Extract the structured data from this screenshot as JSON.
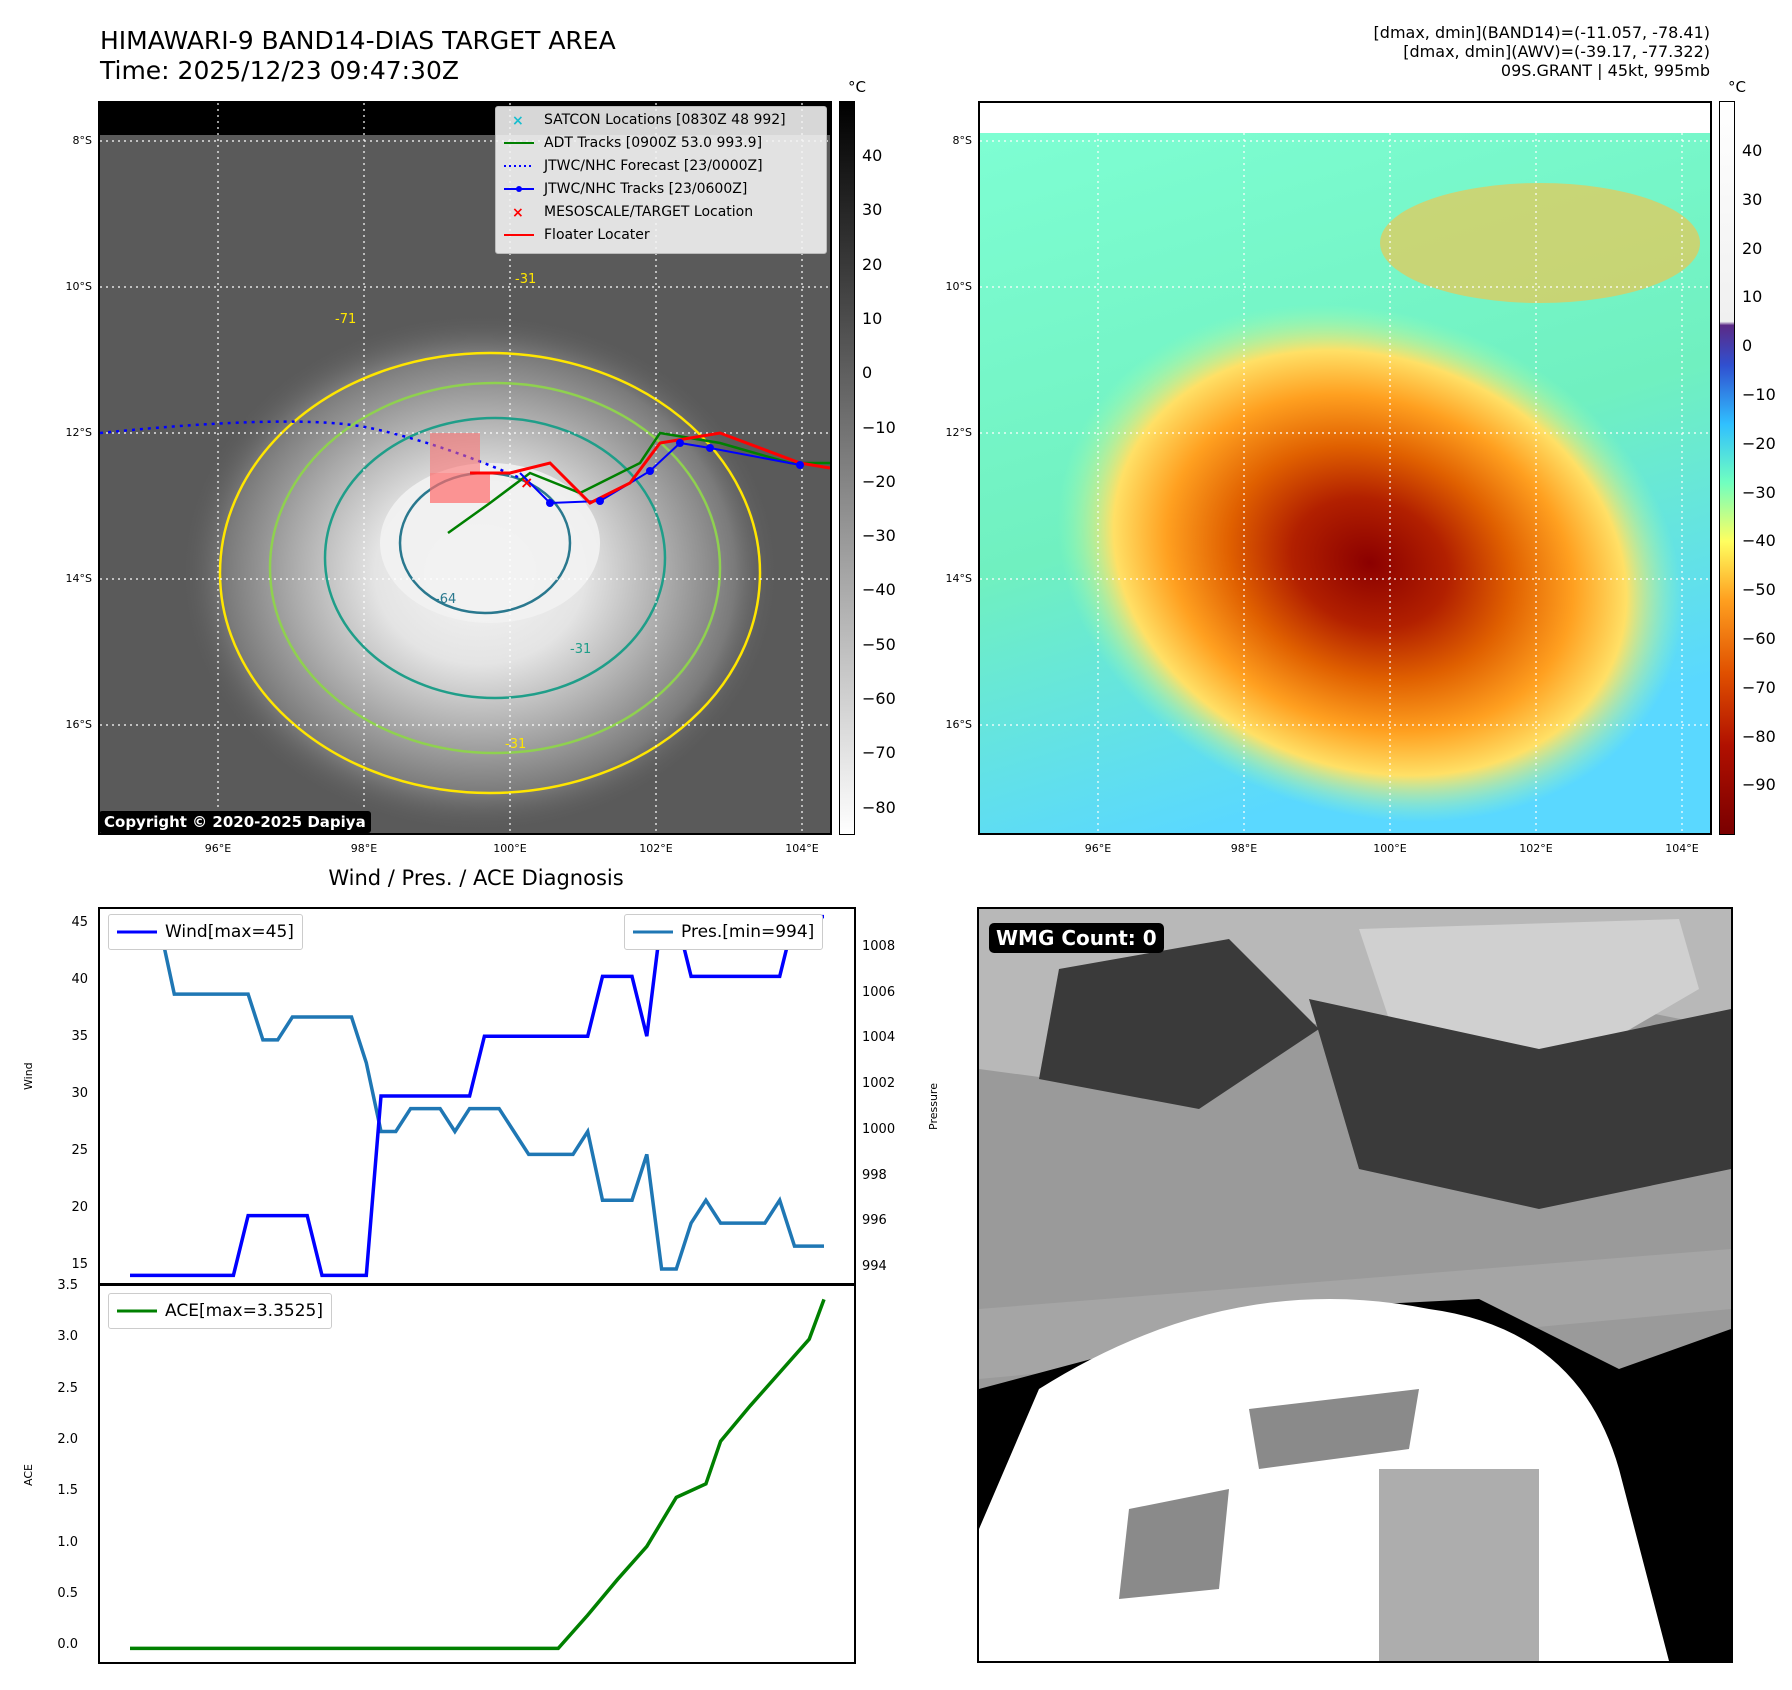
{
  "header": {
    "title_line1": "HIMAWARI-9 BAND14-DIAS TARGET AREA",
    "title_line2": "Time: 2025/12/23 09:47:30Z",
    "info_line1": "[dmax, dmin](BAND14)=(-11.057, -78.41)",
    "info_line2": "[dmax, dmin](AWV)=(-39.17, -77.322)",
    "info_line3": "09S.GRANT | 45kt, 995mb"
  },
  "map": {
    "lat_ticks": [
      "8°S",
      "10°S",
      "12°S",
      "14°S",
      "16°S"
    ],
    "lon_ticks": [
      "96°E",
      "98°E",
      "100°E",
      "102°E",
      "104°E"
    ],
    "contour_labels": [
      "-31",
      "-64",
      "-31",
      "-31",
      "-71"
    ],
    "copyright": "Copyright © 2020-2025 Dapiya",
    "legend": [
      {
        "label": "SATCON Locations [0830Z 48 992]",
        "color": "#17becf"
      },
      {
        "label": "ADT Tracks [0900Z 53.0 993.9]",
        "color": "#008000"
      },
      {
        "label": "JTWC/NHC Forecast [23/0000Z]",
        "color": "#0000ff"
      },
      {
        "label": "JTWC/NHC Tracks [23/0600Z]",
        "color": "#0000ff"
      },
      {
        "label": "MESOSCALE/TARGET Location",
        "color": "#ff0000"
      },
      {
        "label": "Floater Locater",
        "color": "#ff0000"
      }
    ]
  },
  "colorbar_gray": {
    "unit": "°C",
    "ticks": [
      "40",
      "30",
      "20",
      "10",
      "0",
      "−10",
      "−20",
      "−30",
      "−40",
      "−50",
      "−60",
      "−70",
      "−80"
    ]
  },
  "colorbar_color": {
    "unit": "°C",
    "ticks": [
      "40",
      "30",
      "20",
      "10",
      "0",
      "−10",
      "−20",
      "−30",
      "−40",
      "−50",
      "−60",
      "−70",
      "−80",
      "−90"
    ]
  },
  "wind_panel": {
    "title": "Wind / Pres. / ACE Diagnosis",
    "wind_legend": "Wind[max=45]",
    "pres_legend": "Pres.[min=994]",
    "ace_legend": "ACE[max=3.3525]",
    "ylabel_left": "Wind",
    "ylabel_right": "Pressure",
    "ylabel_ace": "ACE",
    "wind_ticks": [
      "45",
      "40",
      "35",
      "30",
      "25",
      "20",
      "15"
    ],
    "pres_ticks": [
      "1008",
      "1006",
      "1004",
      "1002",
      "1000",
      "998",
      "996",
      "994"
    ],
    "ace_ticks": [
      "3.5",
      "3.0",
      "2.5",
      "2.0",
      "1.5",
      "1.0",
      "0.5",
      "0.0"
    ]
  },
  "wmg": {
    "badge": "WMG Count: 0"
  },
  "chart_data": [
    {
      "type": "line",
      "title": "Wind / Pres. / ACE Diagnosis",
      "ylabel": "Wind",
      "ylim": [
        14.2,
        45.8
      ],
      "x": [
        0,
        1,
        2,
        3,
        4,
        5,
        6,
        7,
        8,
        9,
        10,
        11,
        12,
        13,
        14,
        15,
        16,
        17,
        18,
        19,
        20,
        21,
        22,
        23,
        24,
        25,
        26,
        27,
        28,
        29,
        30,
        31,
        32,
        33,
        34,
        35,
        36,
        37,
        38,
        39,
        40,
        41,
        42,
        43,
        44,
        45,
        46,
        47
      ],
      "series": [
        {
          "name": "Wind[max=45]",
          "color": "#0000ff",
          "values": [
            15,
            15,
            15,
            15,
            15,
            15,
            15,
            15,
            20,
            20,
            20,
            20,
            20,
            15,
            15,
            15,
            15,
            30,
            30,
            30,
            30,
            30,
            30,
            30,
            35,
            35,
            35,
            35,
            35,
            35,
            35,
            35,
            40,
            40,
            40,
            35,
            45,
            45,
            40,
            40,
            40,
            40,
            40,
            40,
            40,
            45,
            45,
            45
          ]
        },
        {
          "name": "Pres.[min=994]",
          "color": "#1f77b4",
          "ylim": [
            993.3,
            1009.8
          ],
          "values": [
            1009,
            1009,
            1009,
            1006,
            1006,
            1006,
            1006,
            1006,
            1006,
            1004,
            1004,
            1005,
            1005,
            1005,
            1005,
            1005,
            1003,
            1000,
            1000,
            1001,
            1001,
            1001,
            1000,
            1001,
            1001,
            1001,
            1000,
            999,
            999,
            999,
            999,
            1000,
            997,
            997,
            997,
            999,
            994,
            994,
            996,
            997,
            996,
            996,
            996,
            996,
            997,
            995,
            995,
            995
          ]
        }
      ]
    },
    {
      "type": "line",
      "ylabel": "ACE",
      "ylim": [
        -0.15,
        3.5
      ],
      "x": [
        0,
        29,
        31,
        33,
        35,
        37,
        39,
        40,
        42,
        44,
        46,
        47
      ],
      "series": [
        {
          "name": "ACE[max=3.3525]",
          "color": "#008000",
          "values": [
            0,
            0,
            0.32,
            0.66,
            0.98,
            1.45,
            1.58,
            1.99,
            2.33,
            2.65,
            2.97,
            3.3525
          ]
        }
      ]
    }
  ]
}
